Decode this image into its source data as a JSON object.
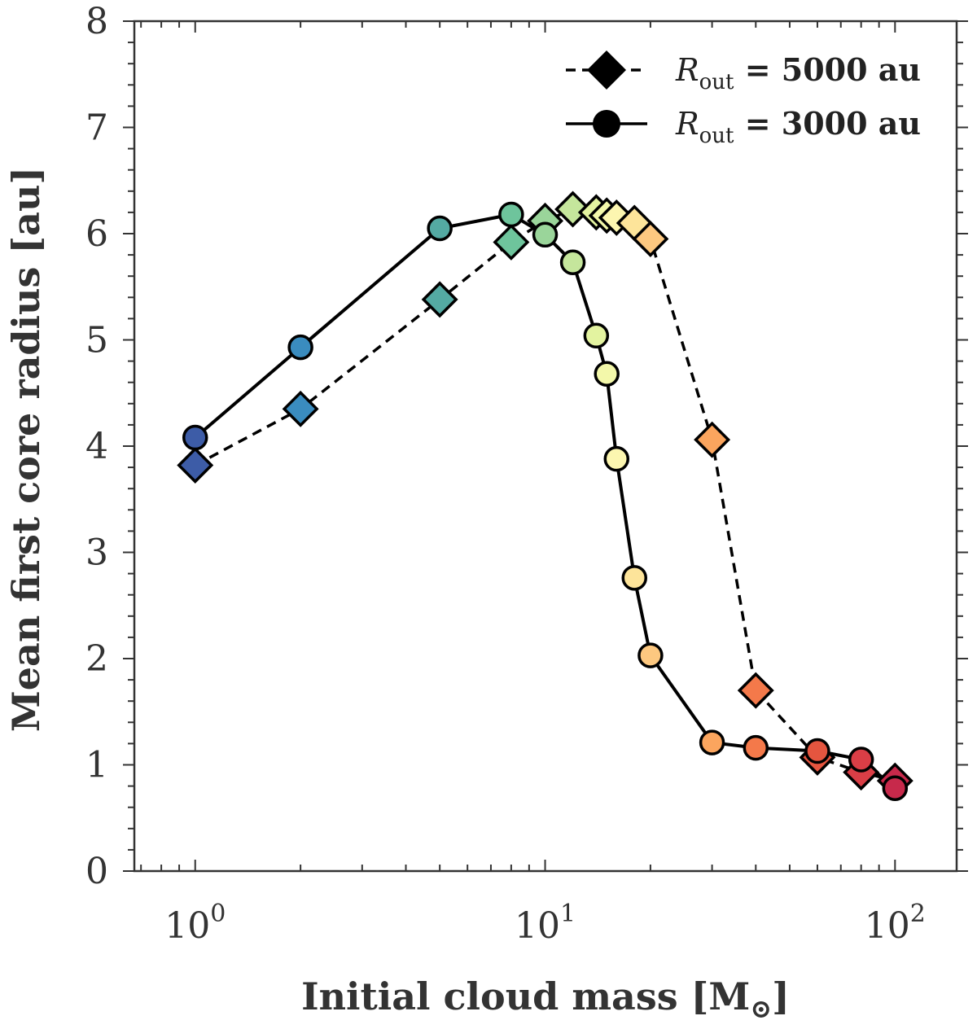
{
  "chart_data": {
    "type": "scatter",
    "xscale": "log",
    "xlim": [
      0.67,
      150
    ],
    "ylim": [
      0,
      8
    ],
    "xlabel": "Initial cloud mass [M",
    "xlabel_symbol": "⊙",
    "xlabel_close": "]",
    "ylabel": "Mean first core radius [au]",
    "x_ticks": [
      {
        "value": 1,
        "base": "10",
        "exp": "0"
      },
      {
        "value": 10,
        "base": "10",
        "exp": "1"
      },
      {
        "value": 100,
        "base": "10",
        "exp": "2"
      }
    ],
    "y_ticks": [
      "0",
      "1",
      "2",
      "3",
      "4",
      "5",
      "6",
      "7",
      "8"
    ],
    "legend": {
      "position": "top-right",
      "symbol_label": "R",
      "symbol_sub": "out",
      "entries": [
        {
          "marker": "diamond",
          "line": "dashed",
          "text": " = 5000 au"
        },
        {
          "marker": "circle",
          "line": "solid",
          "text": " = 3000 au"
        }
      ]
    },
    "series": [
      {
        "name": "Rout = 5000 au",
        "marker": "diamond",
        "line": "dashed",
        "x": [
          1,
          2,
          5,
          8,
          10,
          12,
          14,
          15,
          16,
          18,
          20,
          30,
          40,
          60,
          80,
          100
        ],
        "y": [
          3.82,
          4.35,
          5.38,
          5.92,
          6.12,
          6.23,
          6.2,
          6.17,
          6.15,
          6.1,
          5.95,
          4.06,
          1.7,
          1.07,
          0.93,
          0.85
        ],
        "colors": [
          "#3d5ca7",
          "#3a8cbf",
          "#54aaa3",
          "#6ec49c",
          "#9ad59a",
          "#c5e69c",
          "#e3f3a0",
          "#f3f8aa",
          "#fcf6b0",
          "#fde49a",
          "#fdc880",
          "#fba55e",
          "#f4794a",
          "#e5553f",
          "#da3e46",
          "#c7294b"
        ]
      },
      {
        "name": "Rout = 3000 au",
        "marker": "circle",
        "line": "solid",
        "x": [
          1,
          2,
          5,
          8,
          10,
          12,
          14,
          15,
          16,
          18,
          20,
          30,
          40,
          60,
          80,
          100
        ],
        "y": [
          4.08,
          4.93,
          6.05,
          6.18,
          5.99,
          5.73,
          5.04,
          4.68,
          3.88,
          2.76,
          2.03,
          1.21,
          1.16,
          1.13,
          1.05,
          0.78
        ],
        "colors": [
          "#3d5ca7",
          "#3a8cbf",
          "#54aaa3",
          "#6ec49c",
          "#9ad59a",
          "#c5e69c",
          "#e3f3a0",
          "#f3f8aa",
          "#fcf6b0",
          "#fde49a",
          "#fdc880",
          "#fba55e",
          "#f4794a",
          "#e5553f",
          "#da3e46",
          "#c7294b"
        ]
      }
    ]
  }
}
